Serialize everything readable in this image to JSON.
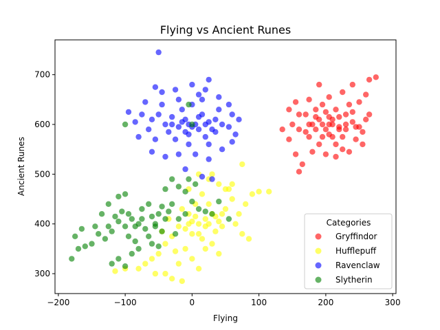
{
  "chart_data": {
    "type": "scatter",
    "title": "Flying vs Ancient Runes",
    "xlabel": "Flying",
    "ylabel": "Ancient Runes",
    "xlim": [
      -205,
      305
    ],
    "ylim": [
      260,
      770
    ],
    "xticks": [
      -200,
      -100,
      0,
      100,
      200,
      300
    ],
    "xtick_labels": [
      "−200",
      "−100",
      "0",
      "100",
      "200",
      "300"
    ],
    "yticks": [
      300,
      400,
      500,
      600,
      700
    ],
    "ytick_labels": [
      "300",
      "400",
      "500",
      "600",
      "700"
    ],
    "grid": false,
    "legend": {
      "title": "Categories",
      "position": "lower-right"
    },
    "series": [
      {
        "name": "Gryffindor",
        "color": "#ff0000",
        "points": [
          [
            195,
            600
          ],
          [
            210,
            610
          ],
          [
            220,
            595
          ],
          [
            205,
            580
          ],
          [
            230,
            620
          ],
          [
            185,
            615
          ],
          [
            200,
            590
          ],
          [
            240,
            605
          ],
          [
            175,
            600
          ],
          [
            215,
            630
          ],
          [
            225,
            575
          ],
          [
            190,
            560
          ],
          [
            250,
            595
          ],
          [
            170,
            585
          ],
          [
            235,
            640
          ],
          [
            205,
            655
          ],
          [
            160,
            590
          ],
          [
            180,
            545
          ],
          [
            245,
            570
          ],
          [
            260,
            610
          ],
          [
            215,
            560
          ],
          [
            195,
            640
          ],
          [
            150,
            600
          ],
          [
            230,
            590
          ],
          [
            210,
            600
          ],
          [
            220,
            615
          ],
          [
            200,
            625
          ],
          [
            185,
            590
          ],
          [
            240,
            625
          ],
          [
            170,
            620
          ],
          [
            255,
            585
          ],
          [
            225,
            550
          ],
          [
            190,
            680
          ],
          [
            225,
            665
          ],
          [
            240,
            680
          ],
          [
            265,
            690
          ],
          [
            275,
            695
          ],
          [
            265,
            620
          ],
          [
            135,
            590
          ],
          [
            145,
            570
          ],
          [
            155,
            540
          ],
          [
            165,
            520
          ],
          [
            160,
            505
          ],
          [
            145,
            630
          ],
          [
            155,
            645
          ],
          [
            175,
            650
          ],
          [
            250,
            645
          ],
          [
            260,
            660
          ],
          [
            200,
            540
          ],
          [
            215,
            535
          ],
          [
            235,
            545
          ],
          [
            255,
            560
          ],
          [
            160,
            620
          ],
          [
            180,
            600
          ],
          [
            205,
            615
          ],
          [
            230,
            600
          ],
          [
            220,
            590
          ],
          [
            195,
            575
          ],
          [
            185,
            630
          ],
          [
            245,
            595
          ],
          [
            210,
            575
          ],
          [
            205,
            600
          ],
          [
            190,
            610
          ],
          [
            175,
            575
          ]
        ]
      },
      {
        "name": "Hufflepuff",
        "color": "#ffff00",
        "points": [
          [
            10,
            400
          ],
          [
            20,
            410
          ],
          [
            -10,
            390
          ],
          [
            30,
            420
          ],
          [
            0,
            380
          ],
          [
            40,
            405
          ],
          [
            -20,
            395
          ],
          [
            15,
            370
          ],
          [
            25,
            440
          ],
          [
            -5,
            420
          ],
          [
            50,
            430
          ],
          [
            35,
            385
          ],
          [
            5,
            415
          ],
          [
            -30,
            375
          ],
          [
            45,
            395
          ],
          [
            60,
            450
          ],
          [
            70,
            420
          ],
          [
            55,
            470
          ],
          [
            80,
            440
          ],
          [
            90,
            460
          ],
          [
            -40,
            360
          ],
          [
            -25,
            345
          ],
          [
            -50,
            340
          ],
          [
            -60,
            330
          ],
          [
            -70,
            320
          ],
          [
            -80,
            310
          ],
          [
            -20,
            320
          ],
          [
            0,
            330
          ],
          [
            20,
            350
          ],
          [
            30,
            360
          ],
          [
            40,
            340
          ],
          [
            -10,
            350
          ],
          [
            15,
            460
          ],
          [
            25,
            490
          ],
          [
            40,
            480
          ],
          [
            60,
            480
          ],
          [
            75,
            520
          ],
          [
            100,
            465
          ],
          [
            115,
            465
          ],
          [
            -40,
            300
          ],
          [
            -30,
            290
          ],
          [
            -15,
            285
          ],
          [
            10,
            310
          ],
          [
            -55,
            300
          ],
          [
            -100,
            310
          ],
          [
            -115,
            305
          ],
          [
            5,
            440
          ],
          [
            -5,
            470
          ],
          [
            10,
            500
          ],
          [
            30,
            500
          ],
          [
            50,
            470
          ],
          [
            65,
            400
          ],
          [
            75,
            380
          ],
          [
            85,
            370
          ],
          [
            -35,
            410
          ],
          [
            -45,
            385
          ],
          [
            20,
            395
          ],
          [
            35,
            415
          ],
          [
            0,
            405
          ],
          [
            -15,
            430
          ],
          [
            10,
            380
          ],
          [
            25,
            400
          ],
          [
            45,
            420
          ],
          [
            -5,
            400
          ]
        ]
      },
      {
        "name": "Ravenclaw",
        "color": "#0000ff",
        "points": [
          [
            -10,
            610
          ],
          [
            5,
            600
          ],
          [
            -20,
            595
          ],
          [
            15,
            620
          ],
          [
            -5,
            580
          ],
          [
            25,
            605
          ],
          [
            -30,
            615
          ],
          [
            10,
            590
          ],
          [
            -15,
            630
          ],
          [
            20,
            575
          ],
          [
            -40,
            600
          ],
          [
            35,
            610
          ],
          [
            0,
            640
          ],
          [
            -25,
            570
          ],
          [
            30,
            590
          ],
          [
            -50,
            620
          ],
          [
            45,
            600
          ],
          [
            -35,
            585
          ],
          [
            15,
            650
          ],
          [
            -5,
            560
          ],
          [
            -60,
            610
          ],
          [
            55,
            595
          ],
          [
            -45,
            640
          ],
          [
            40,
            630
          ],
          [
            -65,
            590
          ],
          [
            60,
            620
          ],
          [
            -55,
            570
          ],
          [
            25,
            560
          ],
          [
            -20,
            650
          ],
          [
            10,
            660
          ],
          [
            -75,
            620
          ],
          [
            -85,
            605
          ],
          [
            -95,
            625
          ],
          [
            -70,
            645
          ],
          [
            -80,
            575
          ],
          [
            -60,
            545
          ],
          [
            -40,
            535
          ],
          [
            -20,
            540
          ],
          [
            5,
            540
          ],
          [
            25,
            530
          ],
          [
            45,
            550
          ],
          [
            60,
            565
          ],
          [
            65,
            580
          ],
          [
            70,
            610
          ],
          [
            55,
            640
          ],
          [
            40,
            655
          ],
          [
            20,
            670
          ],
          [
            0,
            680
          ],
          [
            -25,
            670
          ],
          [
            -45,
            665
          ],
          [
            -55,
            675
          ],
          [
            25,
            690
          ],
          [
            -50,
            745
          ],
          [
            -10,
            510
          ],
          [
            15,
            495
          ],
          [
            30,
            490
          ],
          [
            -5,
            600
          ],
          [
            10,
            615
          ],
          [
            -15,
            605
          ],
          [
            20,
            600
          ],
          [
            0,
            595
          ],
          [
            -30,
            600
          ],
          [
            35,
            585
          ],
          [
            -10,
            585
          ]
        ]
      },
      {
        "name": "Slytherin",
        "color": "#008000",
        "points": [
          [
            -80,
            400
          ],
          [
            -90,
            410
          ],
          [
            -70,
            390
          ],
          [
            -100,
            395
          ],
          [
            -60,
            415
          ],
          [
            -110,
            405
          ],
          [
            -50,
            420
          ],
          [
            -120,
            385
          ],
          [
            -75,
            430
          ],
          [
            -95,
            375
          ],
          [
            -65,
            440
          ],
          [
            -105,
            425
          ],
          [
            -85,
            365
          ],
          [
            -55,
            400
          ],
          [
            -115,
            415
          ],
          [
            -45,
            435
          ],
          [
            -125,
            395
          ],
          [
            -40,
            410
          ],
          [
            -130,
            370
          ],
          [
            -35,
            425
          ],
          [
            -140,
            380
          ],
          [
            -30,
            440
          ],
          [
            -20,
            410
          ],
          [
            -10,
            420
          ],
          [
            -150,
            360
          ],
          [
            -160,
            355
          ],
          [
            -170,
            350
          ],
          [
            -180,
            330
          ],
          [
            -175,
            375
          ],
          [
            -165,
            390
          ],
          [
            -145,
            395
          ],
          [
            -135,
            420
          ],
          [
            -125,
            440
          ],
          [
            -110,
            455
          ],
          [
            -100,
            460
          ],
          [
            -120,
            320
          ],
          [
            -110,
            330
          ],
          [
            -100,
            315
          ],
          [
            -90,
            340
          ],
          [
            -80,
            350
          ],
          [
            -60,
            360
          ],
          [
            -50,
            355
          ],
          [
            -40,
            470
          ],
          [
            -30,
            490
          ],
          [
            -20,
            475
          ],
          [
            -10,
            465
          ],
          [
            0,
            445
          ],
          [
            10,
            430
          ],
          [
            20,
            425
          ],
          [
            30,
            420
          ],
          [
            -5,
            490
          ],
          [
            5,
            480
          ],
          [
            -25,
            380
          ],
          [
            -45,
            385
          ],
          [
            -65,
            375
          ],
          [
            -85,
            395
          ],
          [
            -95,
            420
          ],
          [
            -75,
            410
          ],
          [
            -55,
            395
          ],
          [
            40,
            445
          ],
          [
            55,
            410
          ],
          [
            -100,
            600
          ],
          [
            0,
            600
          ],
          [
            -5,
            640
          ]
        ]
      }
    ]
  }
}
